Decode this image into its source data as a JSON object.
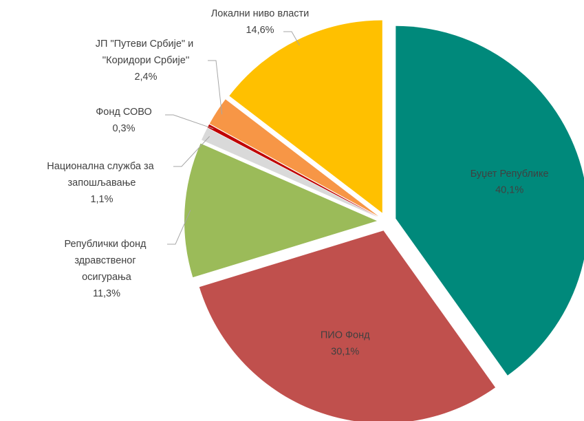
{
  "chart_data": {
    "type": "pie",
    "categories": [
      "Буџет Републике",
      "ПИО Фонд",
      "Републички фонд здравственог осигурања",
      "Национална служба за запошљавање",
      "Фонд СОВО",
      "ЈП \"Путеви Србије\" и ''Коридори Србије''",
      "Локални ниво власти"
    ],
    "values": [
      40.1,
      30.1,
      11.3,
      1.1,
      0.3,
      2.4,
      14.6
    ],
    "value_labels": [
      "40,1%",
      "30,1%",
      "11,3%",
      "1,1%",
      "0,3%",
      "2,4%",
      "14,6%"
    ],
    "colors": [
      "#00897B",
      "#C0504D",
      "#9BBB59",
      "#D9D9D9",
      "#C00000",
      "#F79646",
      "#FFC000"
    ]
  }
}
